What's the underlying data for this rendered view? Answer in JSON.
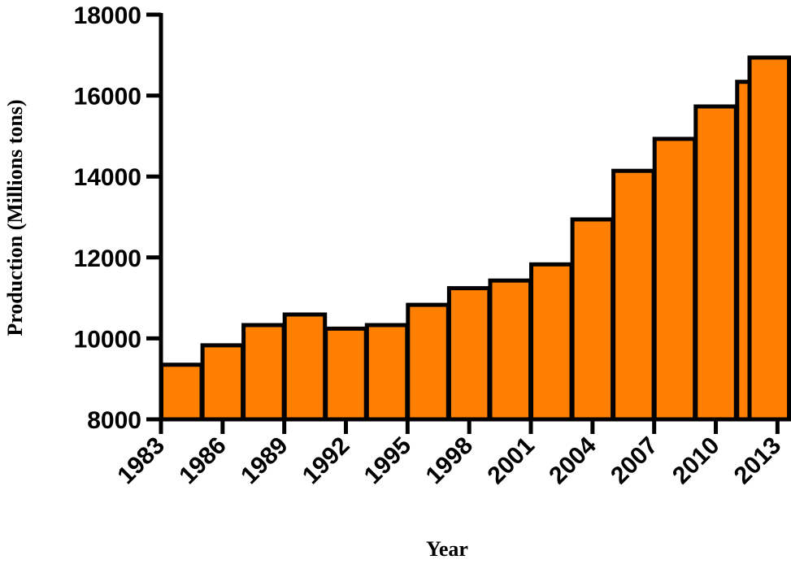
{
  "chart_data": {
    "type": "bar",
    "title": "",
    "xlabel": "Year",
    "ylabel": "Production (Millions tons)",
    "ylim": [
      8000,
      18000
    ],
    "yticks": [
      "8000",
      "10000",
      "12000",
      "14000",
      "16000",
      "18000"
    ],
    "xticks": [
      "1983",
      "1986",
      "1989",
      "1992",
      "1995",
      "1998",
      "2001",
      "2004",
      "2007",
      "2010",
      "2013"
    ],
    "x_range": [
      1983,
      2013.5
    ],
    "bar_color": "#FF8000",
    "edge_color": "#000000",
    "grid": false,
    "series": [
      {
        "x": [
          1984,
          1986,
          1988,
          1990,
          1992,
          1994,
          1996,
          1998,
          2000,
          2002,
          2004,
          2006,
          2008,
          2010,
          2011.6,
          2012.6
        ],
        "values": [
          9350,
          9830,
          10330,
          10590,
          10240,
          10330,
          10830,
          11240,
          11430,
          11830,
          12940,
          14140,
          14930,
          15730,
          16340,
          16940
        ]
      }
    ]
  }
}
